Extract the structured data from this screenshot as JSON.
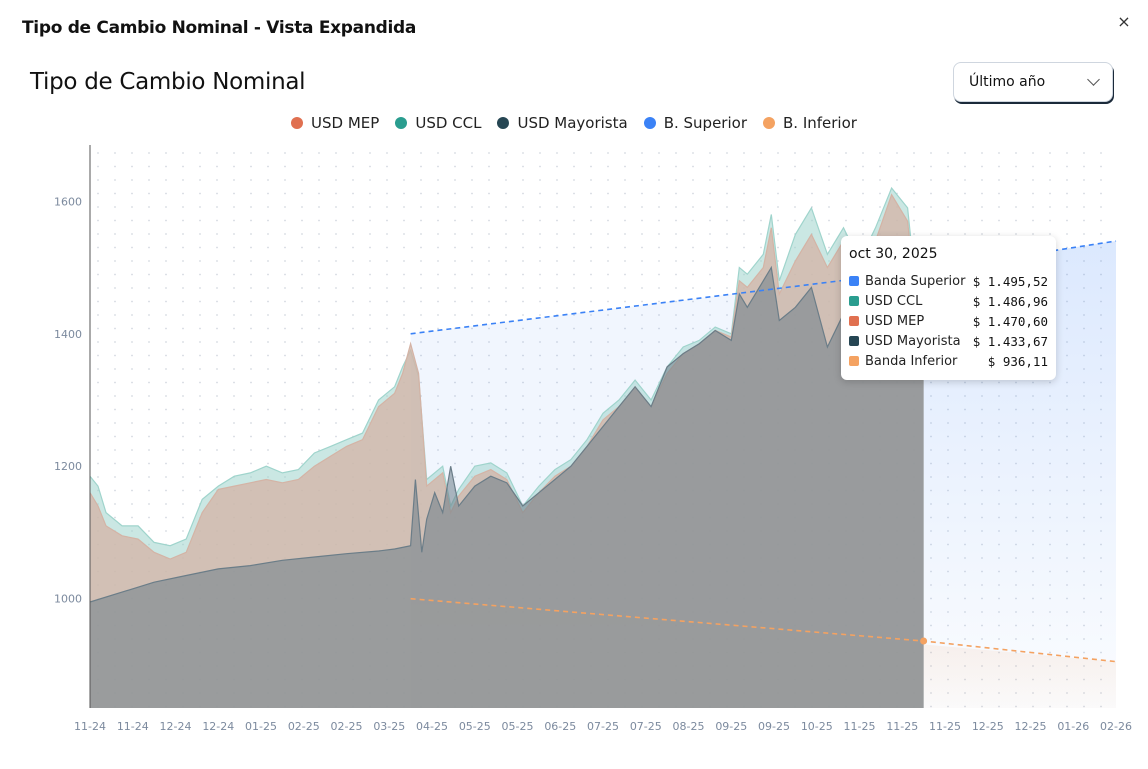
{
  "modal": {
    "title": "Tipo de Cambio Nominal - Vista Expandida",
    "close_label": "×"
  },
  "header": {
    "title": "Tipo de Cambio Nominal",
    "range_value": "Último año"
  },
  "legend": [
    {
      "label": "USD MEP",
      "color": "#e07050"
    },
    {
      "label": "USD CCL",
      "color": "#2a9d8f"
    },
    {
      "label": "USD Mayorista",
      "color": "#264653"
    },
    {
      "label": "B. Superior",
      "color": "#3b82f6"
    },
    {
      "label": "B. Inferior",
      "color": "#f4a261"
    }
  ],
  "tooltip": {
    "date": "oct 30, 2025",
    "rows": [
      {
        "name": "Banda Superior",
        "value": "$ 1.495,52",
        "color": "#3b82f6"
      },
      {
        "name": "USD CCL",
        "value": "$ 1.486,96",
        "color": "#2a9d8f"
      },
      {
        "name": "USD MEP",
        "value": "$ 1.470,60",
        "color": "#e07050"
      },
      {
        "name": "USD Mayorista",
        "value": "$ 1.433,67",
        "color": "#264653"
      },
      {
        "name": "Banda Inferior",
        "value": "$ 936,11",
        "color": "#f4a261"
      }
    ]
  },
  "chart_data": {
    "type": "area",
    "ylim": [
      835,
      1685
    ],
    "y_ticks": [
      1000,
      1200,
      1400,
      1600
    ],
    "x_tick_labels": [
      "11-24",
      "11-24",
      "12-24",
      "12-24",
      "01-25",
      "02-25",
      "02-25",
      "03-25",
      "04-25",
      "05-25",
      "05-25",
      "06-25",
      "07-25",
      "07-25",
      "08-25",
      "09-25",
      "09-25",
      "10-25",
      "11-25",
      "11-25",
      "11-25",
      "12-25",
      "12-25",
      "01-26",
      "02-26"
    ],
    "grid": true,
    "series": [
      {
        "name": "USD CCL",
        "color": "#2a9d8f",
        "points": [
          [
            0,
            1185
          ],
          [
            0.5,
            1170
          ],
          [
            1,
            1130
          ],
          [
            2,
            1110
          ],
          [
            3,
            1110
          ],
          [
            4,
            1085
          ],
          [
            5,
            1080
          ],
          [
            6,
            1090
          ],
          [
            7,
            1150
          ],
          [
            8,
            1170
          ],
          [
            9,
            1185
          ],
          [
            10,
            1190
          ],
          [
            11,
            1200
          ],
          [
            12,
            1190
          ],
          [
            13,
            1195
          ],
          [
            14,
            1220
          ],
          [
            15,
            1230
          ],
          [
            16,
            1240
          ],
          [
            17,
            1250
          ],
          [
            18,
            1300
          ],
          [
            19,
            1320
          ],
          [
            19.5,
            1350
          ],
          [
            20,
            1375
          ],
          [
            20.5,
            1335
          ],
          [
            21,
            1180
          ],
          [
            22,
            1200
          ],
          [
            22.5,
            1140
          ],
          [
            23,
            1165
          ],
          [
            24,
            1200
          ],
          [
            25,
            1205
          ],
          [
            26,
            1190
          ],
          [
            27,
            1140
          ],
          [
            28,
            1170
          ],
          [
            29,
            1195
          ],
          [
            30,
            1210
          ],
          [
            31,
            1240
          ],
          [
            32,
            1280
          ],
          [
            33,
            1300
          ],
          [
            34,
            1330
          ],
          [
            35,
            1300
          ],
          [
            36,
            1350
          ],
          [
            37,
            1380
          ],
          [
            38,
            1390
          ],
          [
            39,
            1410
          ],
          [
            40,
            1400
          ],
          [
            40.5,
            1500
          ],
          [
            41,
            1490
          ],
          [
            42,
            1520
          ],
          [
            42.5,
            1580
          ],
          [
            43,
            1480
          ],
          [
            44,
            1550
          ],
          [
            45,
            1590
          ],
          [
            46,
            1520
          ],
          [
            47,
            1560
          ],
          [
            48,
            1510
          ],
          [
            49,
            1560
          ],
          [
            50,
            1620
          ],
          [
            51,
            1590
          ],
          [
            51.3,
            1520
          ],
          [
            52,
            1487
          ]
        ]
      },
      {
        "name": "USD MEP",
        "color": "#e07050",
        "points": [
          [
            0,
            1160
          ],
          [
            0.5,
            1140
          ],
          [
            1,
            1110
          ],
          [
            2,
            1095
          ],
          [
            3,
            1090
          ],
          [
            4,
            1070
          ],
          [
            5,
            1060
          ],
          [
            6,
            1070
          ],
          [
            7,
            1130
          ],
          [
            8,
            1165
          ],
          [
            9,
            1170
          ],
          [
            10,
            1175
          ],
          [
            11,
            1180
          ],
          [
            12,
            1175
          ],
          [
            13,
            1180
          ],
          [
            14,
            1200
          ],
          [
            15,
            1215
          ],
          [
            16,
            1230
          ],
          [
            17,
            1240
          ],
          [
            18,
            1290
          ],
          [
            19,
            1310
          ],
          [
            19.5,
            1340
          ],
          [
            20,
            1385
          ],
          [
            20.5,
            1340
          ],
          [
            21,
            1170
          ],
          [
            22,
            1190
          ],
          [
            22.5,
            1130
          ],
          [
            23,
            1155
          ],
          [
            24,
            1185
          ],
          [
            25,
            1195
          ],
          [
            26,
            1180
          ],
          [
            27,
            1130
          ],
          [
            28,
            1160
          ],
          [
            29,
            1185
          ],
          [
            30,
            1200
          ],
          [
            31,
            1230
          ],
          [
            32,
            1270
          ],
          [
            33,
            1290
          ],
          [
            34,
            1320
          ],
          [
            35,
            1290
          ],
          [
            36,
            1340
          ],
          [
            37,
            1370
          ],
          [
            38,
            1385
          ],
          [
            39,
            1405
          ],
          [
            40,
            1395
          ],
          [
            40.5,
            1480
          ],
          [
            41,
            1470
          ],
          [
            42,
            1500
          ],
          [
            42.5,
            1560
          ],
          [
            43,
            1460
          ],
          [
            44,
            1510
          ],
          [
            45,
            1550
          ],
          [
            46,
            1500
          ],
          [
            47,
            1540
          ],
          [
            48,
            1490
          ],
          [
            49,
            1540
          ],
          [
            50,
            1610
          ],
          [
            51,
            1570
          ],
          [
            51.3,
            1500
          ],
          [
            52,
            1471
          ]
        ]
      },
      {
        "name": "USD Mayorista",
        "color": "#264653",
        "points": [
          [
            0,
            995
          ],
          [
            2,
            1010
          ],
          [
            4,
            1025
          ],
          [
            6,
            1035
          ],
          [
            8,
            1045
          ],
          [
            10,
            1050
          ],
          [
            12,
            1058
          ],
          [
            14,
            1063
          ],
          [
            16,
            1068
          ],
          [
            18,
            1072
          ],
          [
            19,
            1075
          ],
          [
            20,
            1080
          ],
          [
            20.3,
            1180
          ],
          [
            20.7,
            1070
          ],
          [
            21,
            1120
          ],
          [
            21.5,
            1160
          ],
          [
            22,
            1130
          ],
          [
            22.5,
            1200
          ],
          [
            23,
            1140
          ],
          [
            24,
            1170
          ],
          [
            25,
            1185
          ],
          [
            26,
            1175
          ],
          [
            27,
            1140
          ],
          [
            28,
            1160
          ],
          [
            29,
            1180
          ],
          [
            30,
            1200
          ],
          [
            31,
            1230
          ],
          [
            32,
            1260
          ],
          [
            33,
            1290
          ],
          [
            34,
            1320
          ],
          [
            35,
            1290
          ],
          [
            36,
            1350
          ],
          [
            37,
            1370
          ],
          [
            38,
            1385
          ],
          [
            39,
            1405
          ],
          [
            40,
            1390
          ],
          [
            40.5,
            1460
          ],
          [
            41,
            1440
          ],
          [
            42,
            1480
          ],
          [
            42.5,
            1500
          ],
          [
            43,
            1420
          ],
          [
            44,
            1440
          ],
          [
            45,
            1470
          ],
          [
            46,
            1380
          ],
          [
            47,
            1430
          ],
          [
            48,
            1390
          ],
          [
            49,
            1460
          ],
          [
            50,
            1500
          ],
          [
            51,
            1450
          ],
          [
            51.3,
            1400
          ],
          [
            52,
            1434
          ]
        ]
      },
      {
        "name": "B. Superior",
        "color": "#3b82f6",
        "points": [
          [
            20,
            1400
          ],
          [
            52,
            1495.52
          ],
          [
            64,
            1540
          ]
        ]
      },
      {
        "name": "B. Inferior",
        "color": "#f4a261",
        "points": [
          [
            20,
            1000
          ],
          [
            52,
            936.11
          ],
          [
            64,
            905
          ]
        ]
      }
    ]
  }
}
